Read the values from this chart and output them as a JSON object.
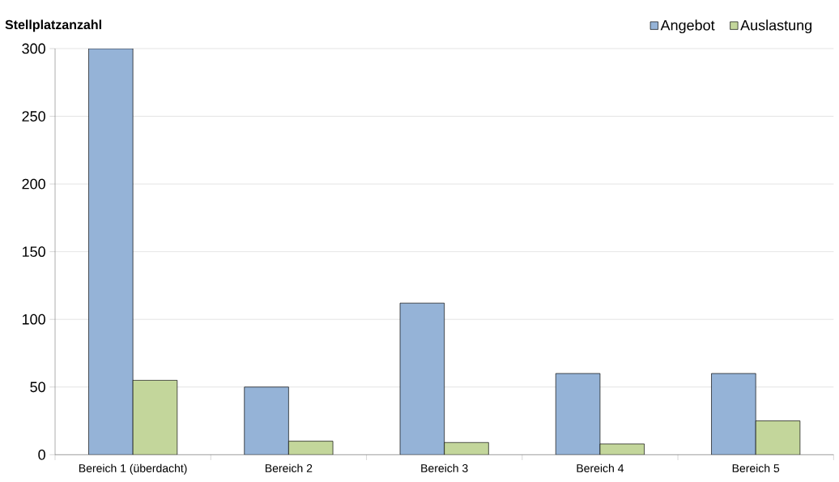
{
  "chart_data": {
    "type": "bar",
    "ylabel": "Stellplatzanzahl",
    "categories": [
      "Bereich 1 (überdacht)",
      "Bereich 2",
      "Bereich 3",
      "Bereich 4",
      "Bereich 5"
    ],
    "series": [
      {
        "name": "Angebot",
        "color": "#95b3d7",
        "values": [
          300,
          50,
          112,
          60,
          60
        ]
      },
      {
        "name": "Auslastung",
        "color": "#c3d69b",
        "values": [
          55,
          10,
          9,
          8,
          25
        ]
      }
    ],
    "ylim": [
      0,
      300
    ],
    "yticks": [
      0,
      50,
      100,
      150,
      200,
      250,
      300
    ],
    "grid": "y",
    "legend": "top right"
  }
}
